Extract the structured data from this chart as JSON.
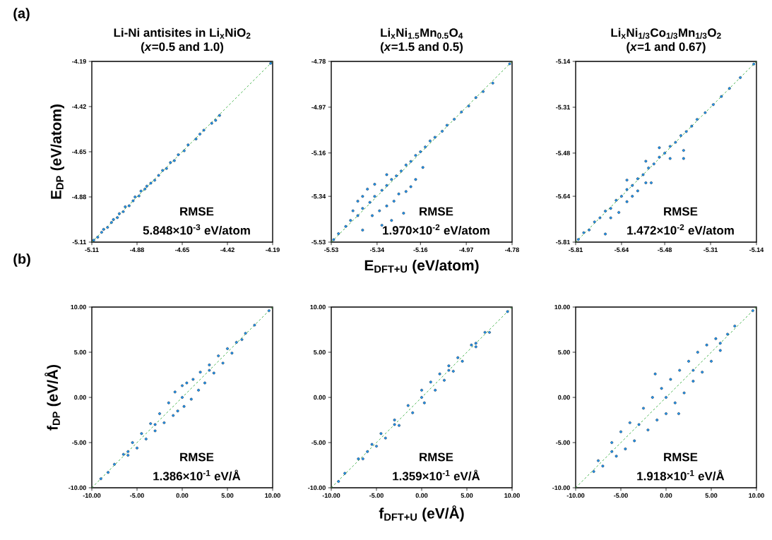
{
  "chart_data": [
    {
      "type": "scatter",
      "title": "Li-Ni antisites in Li$_{x}$NiO$_{2}$",
      "subtitle": "(*x*=0.5 and 1.0)",
      "ylabel": "E$_{DP}$ (eV/atom)",
      "annotations": [
        "(a)",
        "RMSE",
        "5.848×10$^{-3}$ eV/atom"
      ],
      "marker": "circle",
      "xlim": [
        -5.11,
        -4.19
      ],
      "ylim": [
        -5.11,
        -4.19
      ],
      "xticks": [
        -5.11,
        -4.88,
        -4.65,
        -4.42,
        -4.19
      ],
      "yticks": [
        -5.11,
        -4.88,
        -4.65,
        -4.42,
        -4.19
      ],
      "x": [
        -5.1,
        -5.08,
        -5.06,
        -5.05,
        -5.03,
        -5.01,
        -5.0,
        -4.98,
        -4.97,
        -4.95,
        -4.94,
        -4.92,
        -4.9,
        -4.89,
        -4.87,
        -4.86,
        -4.84,
        -4.83,
        -4.81,
        -4.79,
        -4.77,
        -4.75,
        -4.73,
        -4.71,
        -4.69,
        -4.67,
        -4.64,
        -4.62,
        -4.58,
        -4.56,
        -4.54,
        -4.5,
        -4.48,
        -4.46,
        -4.2
      ],
      "series": [
        {
          "color": "#2196f3",
          "values": [
            -5.1,
            -5.085,
            -5.06,
            -5.045,
            -5.035,
            -5.01,
            -4.995,
            -4.985,
            -4.965,
            -4.955,
            -4.93,
            -4.925,
            -4.9,
            -4.88,
            -4.875,
            -4.85,
            -4.84,
            -4.825,
            -4.81,
            -4.795,
            -4.77,
            -4.745,
            -4.735,
            -4.705,
            -4.695,
            -4.665,
            -4.645,
            -4.615,
            -4.585,
            -4.56,
            -4.54,
            -4.505,
            -4.49,
            -4.465,
            -4.2
          ]
        },
        {
          "type": "line",
          "color": "#3cb043",
          "line_style": "dashed",
          "marker": "none",
          "x": [
            -5.11,
            -4.19
          ],
          "values": [
            -5.11,
            -4.19
          ]
        }
      ]
    },
    {
      "type": "scatter",
      "title": "Li$_{x}$Ni$_{1.5}$Mn$_{0.5}$O$_{4}$",
      "subtitle": "(*x*=1.5 and 0.5)",
      "xlabel": "E$_{DFT+U}$ (eV/atom)",
      "annotations": [
        "RMSE",
        "1.970×10$^{-2}$ eV/atom"
      ],
      "marker": "circle",
      "xlim": [
        -5.53,
        -4.78
      ],
      "ylim": [
        -5.53,
        -4.78
      ],
      "xticks": [
        -5.53,
        -5.34,
        -5.16,
        -4.97,
        -4.78
      ],
      "yticks": [
        -5.53,
        -5.34,
        -5.16,
        -4.97,
        -4.78
      ],
      "x": [
        -5.52,
        -5.5,
        -5.47,
        -5.45,
        -5.42,
        -5.4,
        -5.37,
        -5.35,
        -5.32,
        -5.3,
        -5.28,
        -5.26,
        -5.24,
        -5.22,
        -5.2,
        -5.18,
        -5.16,
        -5.14,
        -5.12,
        -5.1,
        -5.07,
        -5.05,
        -5.02,
        -4.99,
        -4.96,
        -4.93,
        -4.9,
        -4.86,
        -4.79,
        -5.42,
        -5.4,
        -5.38,
        -5.35,
        -5.3,
        -5.44,
        -5.36,
        -5.33,
        -5.3,
        -5.27,
        -5.25,
        -5.22,
        -5.2,
        -5.18,
        -5.23,
        -5.28,
        -5.32,
        -5.15,
        -5.4
      ],
      "series": [
        {
          "color": "#2196f3",
          "values": [
            -5.52,
            -5.495,
            -5.465,
            -5.44,
            -5.42,
            -5.39,
            -5.365,
            -5.34,
            -5.315,
            -5.295,
            -5.27,
            -5.255,
            -5.235,
            -5.21,
            -5.195,
            -5.17,
            -5.155,
            -5.135,
            -5.11,
            -5.095,
            -5.07,
            -5.045,
            -5.02,
            -4.99,
            -4.965,
            -4.93,
            -4.905,
            -4.87,
            -4.79,
            -5.36,
            -5.34,
            -5.31,
            -5.29,
            -5.25,
            -5.4,
            -5.42,
            -5.4,
            -5.38,
            -5.36,
            -5.33,
            -5.32,
            -5.3,
            -5.27,
            -5.41,
            -5.44,
            -5.46,
            -5.22,
            -5.48
          ]
        },
        {
          "type": "line",
          "color": "#3cb043",
          "line_style": "dashed",
          "marker": "none",
          "x": [
            -5.53,
            -4.78
          ],
          "values": [
            -5.53,
            -4.78
          ]
        }
      ]
    },
    {
      "type": "scatter",
      "title": "Li$_{x}$Ni$_{1/3}$Co$_{1/3}$Mn$_{1/3}$O$_{2}$",
      "subtitle": "(*x*=1 and 0.67)",
      "annotations": [
        "RMSE",
        "1.472×10$^{-2}$ eV/atom"
      ],
      "marker": "circle",
      "xlim": [
        -5.81,
        -5.14
      ],
      "ylim": [
        -5.81,
        -5.14
      ],
      "xticks": [
        -5.81,
        -5.64,
        -5.48,
        -5.31,
        -5.14
      ],
      "yticks": [
        -5.81,
        -5.64,
        -5.48,
        -5.31,
        -5.14
      ],
      "x": [
        -5.8,
        -5.78,
        -5.76,
        -5.74,
        -5.72,
        -5.7,
        -5.68,
        -5.66,
        -5.64,
        -5.62,
        -5.6,
        -5.58,
        -5.56,
        -5.54,
        -5.52,
        -5.5,
        -5.48,
        -5.46,
        -5.44,
        -5.42,
        -5.4,
        -5.38,
        -5.36,
        -5.33,
        -5.3,
        -5.27,
        -5.24,
        -5.2,
        -5.15,
        -5.41,
        -5.41,
        -5.46,
        -5.53,
        -5.55,
        -5.58,
        -5.6,
        -5.62,
        -5.65,
        -5.68,
        -5.7,
        -5.62,
        -5.55,
        -5.5
      ],
      "series": [
        {
          "color": "#2196f3",
          "values": [
            -5.8,
            -5.775,
            -5.765,
            -5.735,
            -5.72,
            -5.695,
            -5.685,
            -5.655,
            -5.64,
            -5.615,
            -5.6,
            -5.575,
            -5.56,
            -5.535,
            -5.52,
            -5.495,
            -5.48,
            -5.455,
            -5.44,
            -5.415,
            -5.4,
            -5.38,
            -5.355,
            -5.33,
            -5.3,
            -5.27,
            -5.24,
            -5.2,
            -5.15,
            -5.47,
            -5.5,
            -5.5,
            -5.59,
            -5.59,
            -5.62,
            -5.64,
            -5.66,
            -5.7,
            -5.72,
            -5.78,
            -5.58,
            -5.51,
            -5.46
          ]
        },
        {
          "type": "line",
          "color": "#3cb043",
          "line_style": "dashed",
          "marker": "none",
          "x": [
            -5.81,
            -5.14
          ],
          "values": [
            -5.81,
            -5.14
          ]
        }
      ]
    },
    {
      "type": "scatter",
      "ylabel": "f$_{DP}$ (eV/Å)",
      "annotations": [
        "(b)",
        "RMSE",
        "1.386×10$^{-1}$ eV/Å"
      ],
      "marker": "circle",
      "xlim": [
        -10,
        10
      ],
      "ylim": [
        -10,
        10
      ],
      "xticks": [
        {
          "value": -10,
          "label": "-10.00"
        },
        {
          "value": -5,
          "label": "-5.00"
        },
        {
          "value": 0,
          "label": "0.00"
        },
        {
          "value": 5,
          "label": "5.00"
        },
        {
          "value": 10,
          "label": "10.00"
        }
      ],
      "yticks": [
        {
          "value": -10,
          "label": "-10.00"
        },
        {
          "value": -5,
          "label": "-5.00"
        },
        {
          "value": 0,
          "label": "0.00"
        },
        {
          "value": 5,
          "label": "5.00"
        },
        {
          "value": 10,
          "label": "10.00"
        }
      ],
      "x": [
        -9.0,
        -8.2,
        -7.5,
        -6.5,
        -6.0,
        -5.5,
        -5.0,
        -4.5,
        -4.0,
        -3.5,
        -3.0,
        -2.5,
        -2.0,
        -1.5,
        -1.0,
        -0.8,
        -0.5,
        0.0,
        0.2,
        0.5,
        1.0,
        1.2,
        1.8,
        2.0,
        2.5,
        3.0,
        3.5,
        4.0,
        4.5,
        5.0,
        5.5,
        6.0,
        7.0,
        8.0,
        9.6,
        0.0,
        -3.0,
        3.0,
        -6.0,
        6.6
      ],
      "series": [
        {
          "color": "#2196f3",
          "values": [
            -9.0,
            -8.3,
            -7.4,
            -6.3,
            -6.4,
            -5.0,
            -5.6,
            -4.0,
            -4.6,
            -2.9,
            -3.7,
            -1.8,
            -2.8,
            -0.6,
            -2.0,
            0.6,
            -1.5,
            1.3,
            -1.0,
            1.6,
            -0.2,
            2.0,
            0.8,
            2.8,
            1.6,
            3.6,
            2.7,
            4.6,
            3.8,
            5.4,
            4.9,
            6.1,
            7.1,
            8.0,
            9.6,
            0.0,
            -3.0,
            3.0,
            -6.0,
            6.4
          ]
        },
        {
          "type": "line",
          "color": "#3cb043",
          "line_style": "dashed",
          "marker": "none",
          "x": [
            -10,
            10
          ],
          "values": [
            -10,
            10
          ]
        }
      ]
    },
    {
      "type": "scatter",
      "xlabel": "f$_{DFT+U}$ (eV/Å)",
      "annotations": [
        "RMSE",
        "1.359×10$^{-1}$ eV/Å"
      ],
      "marker": "circle",
      "xlim": [
        -10,
        10
      ],
      "ylim": [
        -10,
        10
      ],
      "xticks": [
        {
          "value": -10,
          "label": "-10.00"
        },
        {
          "value": -5,
          "label": "-5.00"
        },
        {
          "value": 0,
          "label": "0.00"
        },
        {
          "value": 5,
          "label": "5.00"
        },
        {
          "value": 10,
          "label": "10.00"
        }
      ],
      "yticks": [
        {
          "value": -10,
          "label": "-10.00"
        },
        {
          "value": -5,
          "label": "-5.00"
        },
        {
          "value": 0,
          "label": "0.00"
        },
        {
          "value": 5,
          "label": "5.00"
        },
        {
          "value": 10,
          "label": "10.00"
        }
      ],
      "x": [
        -9.2,
        -8.5,
        -7.0,
        -6.5,
        -5.5,
        -5.0,
        -4.5,
        -4.0,
        -3.0,
        -2.5,
        -1.5,
        -1.0,
        0.0,
        0.3,
        1.0,
        1.5,
        2.0,
        2.5,
        3.0,
        3.5,
        4.0,
        4.5,
        5.5,
        6.0,
        7.0,
        7.5,
        9.5,
        0.0,
        -3.0,
        3.0,
        -6.0,
        6.0
      ],
      "series": [
        {
          "color": "#2196f3",
          "values": [
            -9.3,
            -8.4,
            -6.8,
            -6.8,
            -5.2,
            -5.4,
            -4.0,
            -4.5,
            -2.5,
            -3.1,
            -0.9,
            -1.7,
            0.8,
            -0.6,
            1.7,
            0.8,
            2.6,
            1.9,
            3.5,
            2.9,
            4.4,
            4.0,
            5.8,
            5.6,
            7.2,
            7.2,
            9.5,
            0.0,
            -3.0,
            3.0,
            -6.0,
            6.0
          ]
        },
        {
          "type": "line",
          "color": "#3cb043",
          "line_style": "dashed",
          "marker": "none",
          "x": [
            -10,
            10
          ],
          "values": [
            -10,
            10
          ]
        }
      ]
    },
    {
      "type": "scatter",
      "annotations": [
        "RMSE",
        "1.918×10$^{-1}$ eV/Å"
      ],
      "marker": "circle",
      "xlim": [
        -10,
        10
      ],
      "ylim": [
        -10,
        10
      ],
      "xticks": [
        {
          "value": -10,
          "label": "-10.00"
        },
        {
          "value": -5,
          "label": "-5.00"
        },
        {
          "value": 0,
          "label": "0.00"
        },
        {
          "value": 5,
          "label": "5.00"
        },
        {
          "value": 10,
          "label": "10.00"
        }
      ],
      "yticks": [
        {
          "value": -10,
          "label": "-10.00"
        },
        {
          "value": -5,
          "label": "-5.00"
        },
        {
          "value": 0,
          "label": "0.00"
        },
        {
          "value": 5,
          "label": "5.00"
        },
        {
          "value": 10,
          "label": "10.00"
        }
      ],
      "x": [
        -8.0,
        -7.5,
        -7.0,
        -6.0,
        -5.5,
        -5.0,
        -4.5,
        -4.0,
        -3.5,
        -2.5,
        -2.0,
        -1.5,
        -1.0,
        -0.5,
        0.0,
        0.5,
        1.0,
        1.5,
        2.0,
        2.5,
        3.0,
        3.5,
        4.0,
        4.5,
        5.0,
        5.5,
        6.0,
        6.8,
        7.6,
        9.6,
        0.0,
        -3.0,
        3.0,
        -6.0,
        6.0,
        -1.2,
        1.4
      ],
      "series": [
        {
          "color": "#2196f3",
          "values": [
            -8.2,
            -7.0,
            -7.6,
            -5.0,
            -6.5,
            -3.8,
            -5.7,
            -2.8,
            -4.8,
            -1.2,
            -3.6,
            0.0,
            -2.5,
            1.0,
            -1.8,
            2.0,
            -0.6,
            3.0,
            0.5,
            4.0,
            1.8,
            5.0,
            2.8,
            5.8,
            4.0,
            6.5,
            5.2,
            7.0,
            7.9,
            9.6,
            0.0,
            -3.0,
            3.0,
            -6.0,
            6.0,
            2.6,
            -1.8
          ]
        },
        {
          "type": "line",
          "color": "#3cb043",
          "line_style": "dashed",
          "marker": "none",
          "x": [
            -10,
            10
          ],
          "values": [
            -10,
            10
          ]
        }
      ]
    }
  ]
}
